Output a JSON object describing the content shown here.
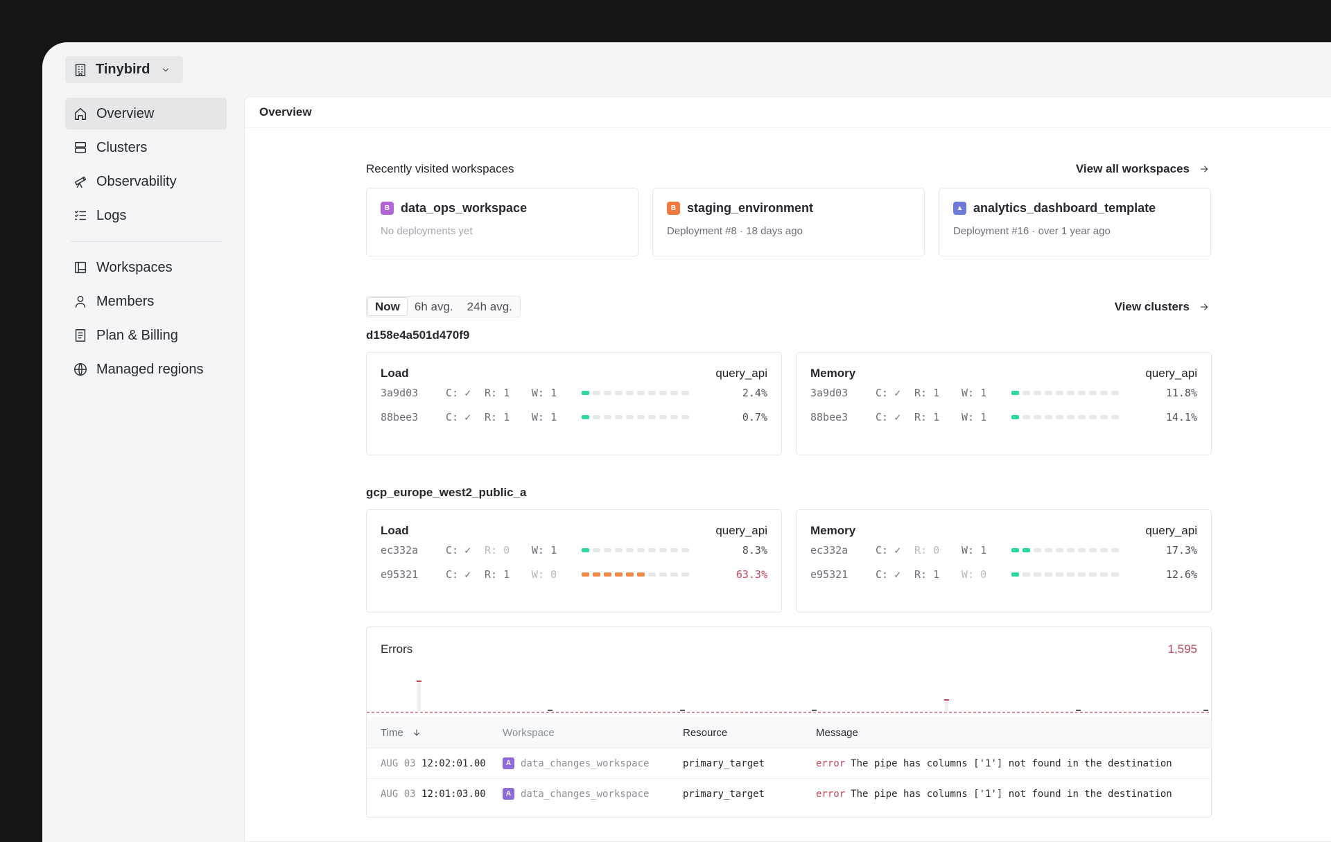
{
  "org": {
    "name": "Tinybird"
  },
  "sidebar": {
    "primary": [
      {
        "label": "Overview",
        "icon": "home-icon",
        "active": true
      },
      {
        "label": "Clusters",
        "icon": "server-icon"
      },
      {
        "label": "Observability",
        "icon": "telescope-icon"
      },
      {
        "label": "Logs",
        "icon": "list-check-icon"
      }
    ],
    "secondary": [
      {
        "label": "Workspaces",
        "icon": "layout-icon"
      },
      {
        "label": "Members",
        "icon": "user-icon"
      },
      {
        "label": "Plan & Billing",
        "icon": "receipt-icon"
      },
      {
        "label": "Managed regions",
        "icon": "globe-icon"
      }
    ]
  },
  "main": {
    "title": "Overview"
  },
  "recent": {
    "label": "Recently visited workspaces",
    "view_all": "View all workspaces",
    "workspaces": [
      {
        "badge": "B",
        "color": "#b265d6",
        "name": "data_ops_workspace",
        "sub": "No deployments yet",
        "muted": true
      },
      {
        "badge": "B",
        "color": "#f07a3e",
        "name": "staging_environment",
        "sub": "Deployment #8 · 18 days ago"
      },
      {
        "badge": "▲",
        "color": "#6f7bd9",
        "name": "analytics_dashboard_template",
        "sub": "Deployment #16 · over 1 year ago"
      }
    ]
  },
  "tabs": {
    "items": [
      "Now",
      "6h avg.",
      "24h avg."
    ],
    "active": 0
  },
  "view_clusters": "View clusters",
  "clusters": [
    {
      "name": "d158e4a501d470f9",
      "cards": [
        {
          "title": "Load",
          "tag": "query_api",
          "rows": [
            {
              "host": "3a9d03",
              "c": "C: ✓",
              "r": "R: 1",
              "w": "W: 1",
              "pct": "2.4%",
              "value": 2.4,
              "color": "green"
            },
            {
              "host": "88bee3",
              "c": "C: ✓",
              "r": "R: 1",
              "w": "W: 1",
              "pct": "0.7%",
              "value": 0.7,
              "color": "green"
            }
          ]
        },
        {
          "title": "Memory",
          "tag": "query_api",
          "rows": [
            {
              "host": "3a9d03",
              "c": "C: ✓",
              "r": "R: 1",
              "w": "W: 1",
              "pct": "11.8%",
              "value": 11.8,
              "color": "green"
            },
            {
              "host": "88bee3",
              "c": "C: ✓",
              "r": "R: 1",
              "w": "W: 1",
              "pct": "14.1%",
              "value": 14.1,
              "color": "green"
            }
          ]
        }
      ]
    },
    {
      "name": "gcp_europe_west2_public_a",
      "cards": [
        {
          "title": "Load",
          "tag": "query_api",
          "rows": [
            {
              "host": "ec332a",
              "c": "C: ✓",
              "r": "R: 0",
              "w": "W: 1",
              "pct": "8.3%",
              "value": 8.3,
              "color": "green",
              "r_dim": true
            },
            {
              "host": "e95321",
              "c": "C: ✓",
              "r": "R: 1",
              "w": "W: 0",
              "pct": "63.3%",
              "value": 63.3,
              "color": "orange",
              "w_dim": true,
              "alert": true
            }
          ]
        },
        {
          "title": "Memory",
          "tag": "query_api",
          "rows": [
            {
              "host": "ec332a",
              "c": "C: ✓",
              "r": "R: 0",
              "w": "W: 1",
              "pct": "17.3%",
              "value": 17.3,
              "color": "green",
              "r_dim": true
            },
            {
              "host": "e95321",
              "c": "C: ✓",
              "r": "R: 1",
              "w": "W: 0",
              "pct": "12.6%",
              "value": 12.6,
              "color": "green",
              "w_dim": true
            }
          ]
        }
      ]
    }
  ],
  "errors": {
    "title": "Errors",
    "count": "1,595",
    "spikes": [
      0,
      0,
      0,
      0,
      0,
      0,
      0,
      0,
      0,
      0,
      0,
      0,
      0,
      0,
      0,
      0,
      0,
      0,
      0,
      0,
      0,
      0,
      0,
      0,
      0,
      0,
      0,
      0,
      0,
      0,
      0,
      0,
      0,
      0,
      0,
      0,
      0,
      0,
      0,
      0,
      0,
      0,
      0,
      0,
      0,
      0,
      0,
      0,
      0,
      0,
      0,
      0,
      0,
      0,
      0,
      0,
      0,
      0,
      0,
      0,
      0,
      0,
      0,
      0,
      0,
      0,
      0,
      0,
      0,
      0,
      0,
      0,
      0,
      0,
      0,
      0,
      0,
      0,
      0,
      0,
      0,
      0,
      0,
      0,
      0,
      0,
      0,
      0,
      0,
      0,
      0,
      0,
      0,
      0,
      0,
      0,
      0,
      0,
      0,
      0,
      0,
      0,
      0,
      0,
      0,
      0,
      0,
      0,
      0,
      0,
      0,
      0,
      0,
      0,
      0,
      0,
      0,
      0,
      0,
      0
    ],
    "columns": [
      "Time",
      "Workspace",
      "Resource",
      "Message"
    ],
    "rows": [
      {
        "date": "AUG 03",
        "time": "12:02:01.00",
        "ws_badge": "A",
        "workspace": "data_changes_workspace",
        "resource": "primary_target",
        "level": "error",
        "message": "The pipe has columns ['1'] not found in the destination"
      },
      {
        "date": "AUG 03",
        "time": "12:01:03.00",
        "ws_badge": "A",
        "workspace": "data_changes_workspace",
        "resource": "primary_target",
        "level": "error",
        "message": "The pipe has columns ['1'] not found in the destination"
      }
    ]
  }
}
